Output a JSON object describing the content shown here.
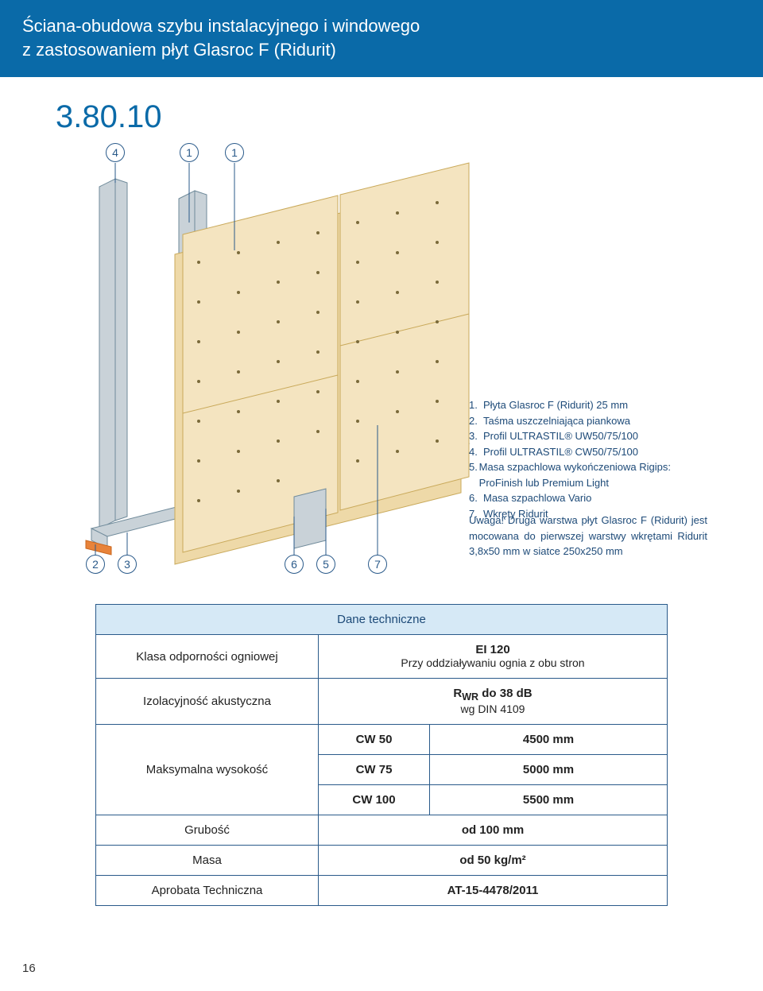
{
  "header": {
    "line1": "Ściana-obudowa szybu instalacyjnego i windowego",
    "line2": "z zastosowaniem płyt Glasroc F (Ridurit)"
  },
  "doc_number": "3.80.10",
  "diagram": {
    "callouts_top": [
      "4",
      "1",
      "1"
    ],
    "callouts_bottom": [
      "2",
      "3",
      "6",
      "5",
      "7"
    ],
    "colors": {
      "profile": "#c9d2d8",
      "profile_edge": "#6f8a9a",
      "board": "#f4e4c0",
      "board_edge": "#c9a95a",
      "tape": "#e8833a",
      "screw": "#7a6a3a",
      "callout_border": "#2a5a8a"
    }
  },
  "legend": {
    "items": [
      {
        "n": "1.",
        "t": "Płyta Glasroc F (Ridurit) 25 mm"
      },
      {
        "n": "2.",
        "t": "Taśma uszczelniająca piankowa"
      },
      {
        "n": "3.",
        "t": "Profil ULTRASTIL® UW50/75/100"
      },
      {
        "n": "4.",
        "t": "Profil ULTRASTIL® CW50/75/100"
      },
      {
        "n": "5.",
        "t": "Masa szpachlowa wykończeniowa Rigips: ProFinish lub Premium Light"
      },
      {
        "n": "6.",
        "t": "Masa szpachlowa Vario"
      },
      {
        "n": "7.",
        "t": "Wkręty Ridurit"
      }
    ],
    "note": "Uwaga! Druga warstwa płyt Glasroc F (Ridurit) jest mocowana do pierwszej warstwy wkrętami Ridurit 3,8x50 mm w siatce 250x250 mm"
  },
  "table": {
    "header": "Dane techniczne",
    "rows": [
      {
        "label": "Klasa odporności ogniowej",
        "value_strong": "EI 120",
        "value_sub": "Przy oddziaływaniu ognia z obu stron"
      },
      {
        "label": "Izolacyjność akustyczna",
        "value_strong": "R<sub>WR</sub> do 38 dB",
        "value_sub": "wg DIN 4109"
      }
    ],
    "height_label": "Maksymalna wysokość",
    "height_rows": [
      {
        "c1": "CW 50",
        "c2": "4500 mm"
      },
      {
        "c1": "CW 75",
        "c2": "5000 mm"
      },
      {
        "c1": "CW 100",
        "c2": "5500 mm"
      }
    ],
    "simple_rows": [
      {
        "label": "Grubość",
        "value": "od 100 mm"
      },
      {
        "label": "Masa",
        "value": "od 50 kg/m²"
      },
      {
        "label": "Aprobata Techniczna",
        "value": "AT-15-4478/2011"
      }
    ]
  },
  "page_number": "16"
}
